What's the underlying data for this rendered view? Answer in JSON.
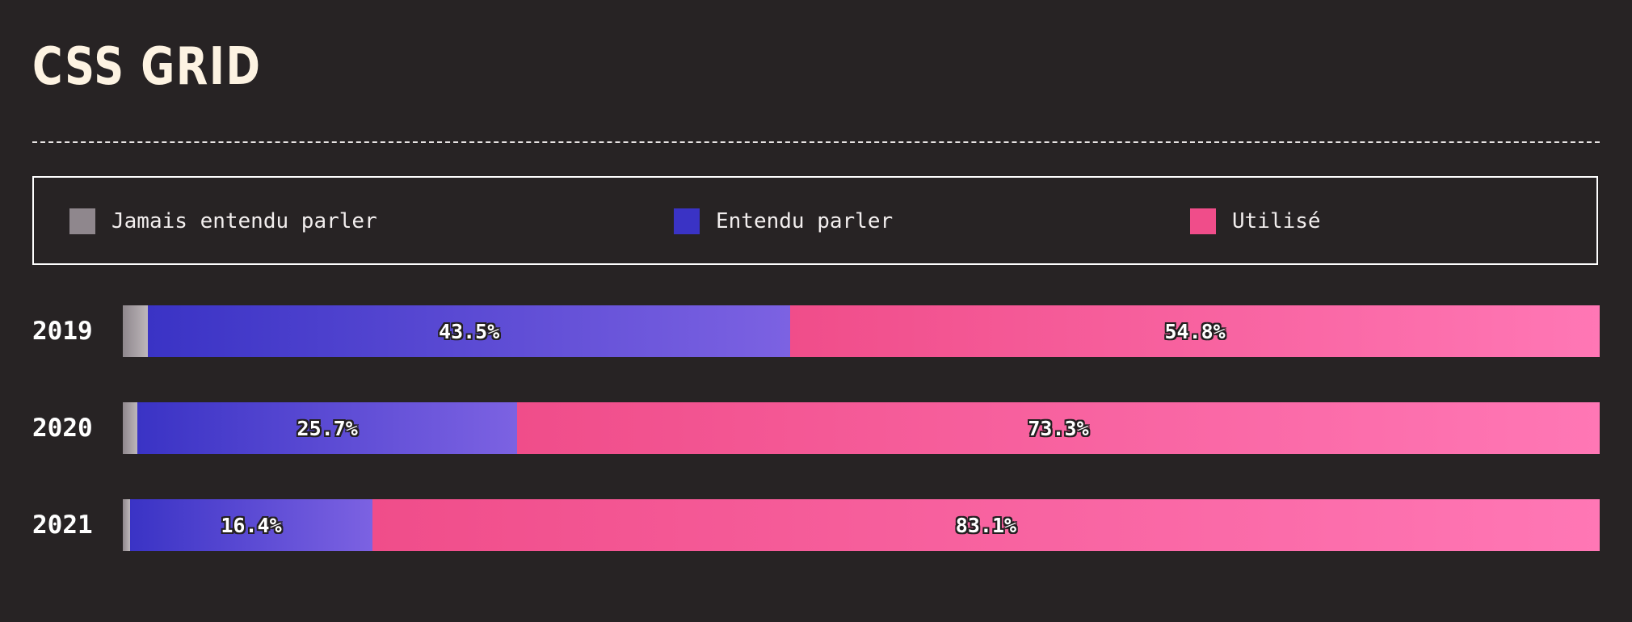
{
  "title": "CSS GRID",
  "legend": [
    {
      "label": "Jamais entendu parler",
      "color": "#8f878d"
    },
    {
      "label": "Entendu parler",
      "color": "#3a33c5"
    },
    {
      "label": "Utilisé",
      "color": "#f04d8a"
    }
  ],
  "chart_data": {
    "type": "bar",
    "orientation": "horizontal",
    "stacked": true,
    "normalized": true,
    "categories": [
      "2019",
      "2020",
      "2021"
    ],
    "series": [
      {
        "name": "Jamais entendu parler",
        "values": [
          1.7,
          1.0,
          0.5
        ],
        "labels": [
          "",
          "",
          ""
        ]
      },
      {
        "name": "Entendu parler",
        "values": [
          43.5,
          25.7,
          16.4
        ],
        "labels": [
          "43.5%",
          "25.7%",
          "16.4%"
        ]
      },
      {
        "name": "Utilisé",
        "values": [
          54.8,
          73.3,
          83.1
        ],
        "labels": [
          "54.8%",
          "73.3%",
          "83.1%"
        ]
      }
    ],
    "colors": {
      "never_heard_start": "#8f878d",
      "never_heard_end": "#bdb7ba",
      "heard_start": "#3a33c5",
      "heard_end": "#7c62e2",
      "used_start": "#f04d8a",
      "used_end": "#ff77b5"
    },
    "legend_position": "top",
    "title": "CSS GRID"
  }
}
